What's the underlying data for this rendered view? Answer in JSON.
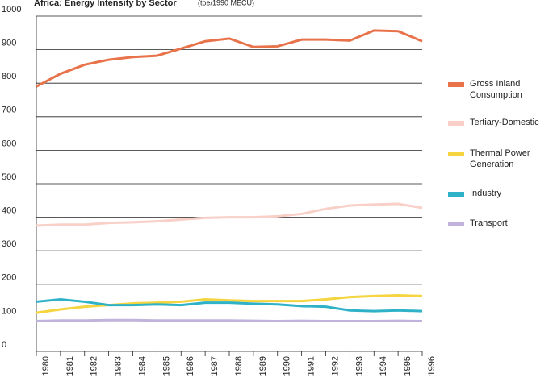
{
  "chart_data": {
    "type": "line",
    "title": "Africa: Energy Intensity by Sector",
    "subtitle": "(toe/1990 MECU)",
    "categories": [
      "1980",
      "1981",
      "1982",
      "1983",
      "1984",
      "1985",
      "1986",
      "1987",
      "1988",
      "1989",
      "1990",
      "1991",
      "1992",
      "1993",
      "1994",
      "1995",
      "1996"
    ],
    "series": [
      {
        "name": "Gross Inland Consumption",
        "color": "#e8734a",
        "values": [
          790,
          828,
          855,
          870,
          878,
          882,
          903,
          925,
          933,
          908,
          910,
          930,
          930,
          927,
          957,
          955,
          925
        ]
      },
      {
        "name": "Tertiary-Domestic",
        "color": "#f8d0c8",
        "values": [
          375,
          378,
          378,
          383,
          385,
          388,
          393,
          398,
          400,
          400,
          403,
          410,
          425,
          435,
          438,
          440,
          428
        ]
      },
      {
        "name": "Thermal Power Generation",
        "color": "#f5d53f",
        "values": [
          115,
          125,
          133,
          138,
          143,
          145,
          148,
          155,
          152,
          150,
          150,
          150,
          155,
          162,
          165,
          167,
          165
        ]
      },
      {
        "name": "Industry",
        "color": "#2fb2c8",
        "values": [
          148,
          155,
          148,
          138,
          138,
          140,
          138,
          145,
          145,
          142,
          140,
          135,
          133,
          122,
          120,
          122,
          120
        ]
      },
      {
        "name": "Transport",
        "color": "#c0b4dc",
        "values": [
          90,
          92,
          92,
          93,
          93,
          92,
          92,
          92,
          92,
          91,
          90,
          91,
          90,
          90,
          90,
          91,
          90
        ]
      }
    ],
    "ylim": [
      0,
      1000
    ],
    "yticks": [
      0,
      100,
      200,
      300,
      400,
      500,
      600,
      700,
      800,
      900,
      1000
    ],
    "grid": true,
    "legend": "right"
  }
}
